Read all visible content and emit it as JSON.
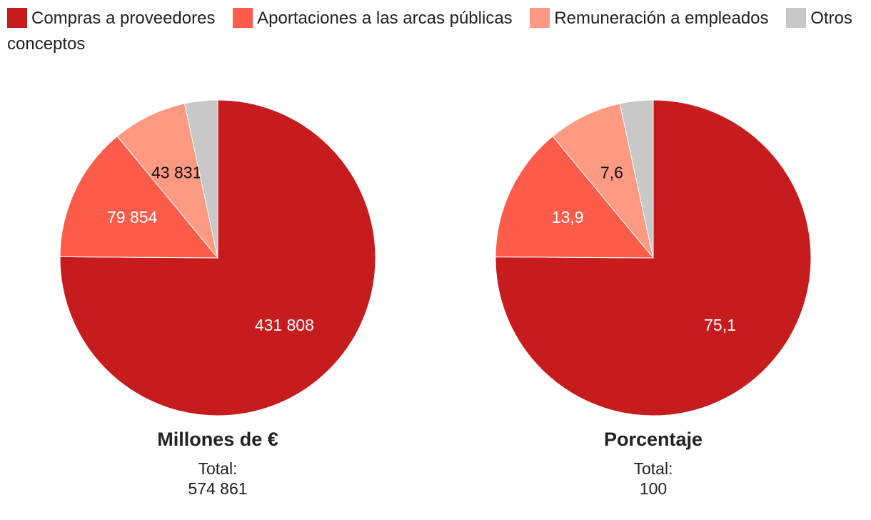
{
  "legend": {
    "items": [
      {
        "label": "Compras a proveedores",
        "color": "#c61c1e"
      },
      {
        "label": "Aportaciones a las arcas públicas",
        "color": "#fe5c4b"
      },
      {
        "label": "Remuneración a empleados",
        "color": "#fe9a81"
      },
      {
        "label": "Otros conceptos",
        "color": "#c8c8c8"
      }
    ]
  },
  "chart_data": [
    {
      "type": "pie",
      "title": "Millones de €",
      "total_label": "Total:",
      "total_value": "574 861",
      "categories": [
        "Compras a proveedores",
        "Aportaciones a las arcas públicas",
        "Remuneración a empleados",
        "Otros conceptos"
      ],
      "values": [
        431808,
        79854,
        43831,
        19368
      ],
      "data_labels": [
        "431 808",
        "79 854",
        "43 831",
        ""
      ],
      "label_colors": [
        "#ffffff",
        "#ffffff",
        "#111111",
        "#111111"
      ],
      "colors": [
        "#c61c1e",
        "#fe5c4b",
        "#fe9a81",
        "#c8c8c8"
      ],
      "start_angle": 0,
      "direction": "clockwise"
    },
    {
      "type": "pie",
      "title": "Porcentaje",
      "total_label": "Total:",
      "total_value": "100",
      "categories": [
        "Compras a proveedores",
        "Aportaciones a las arcas públicas",
        "Remuneración a empleados",
        "Otros conceptos"
      ],
      "values": [
        75.1,
        13.9,
        7.6,
        3.4
      ],
      "data_labels": [
        "75,1",
        "13,9",
        "7,6",
        ""
      ],
      "label_colors": [
        "#ffffff",
        "#ffffff",
        "#111111",
        "#111111"
      ],
      "colors": [
        "#c61c1e",
        "#fe5c4b",
        "#fe9a81",
        "#c8c8c8"
      ],
      "start_angle": 0,
      "direction": "clockwise"
    }
  ]
}
